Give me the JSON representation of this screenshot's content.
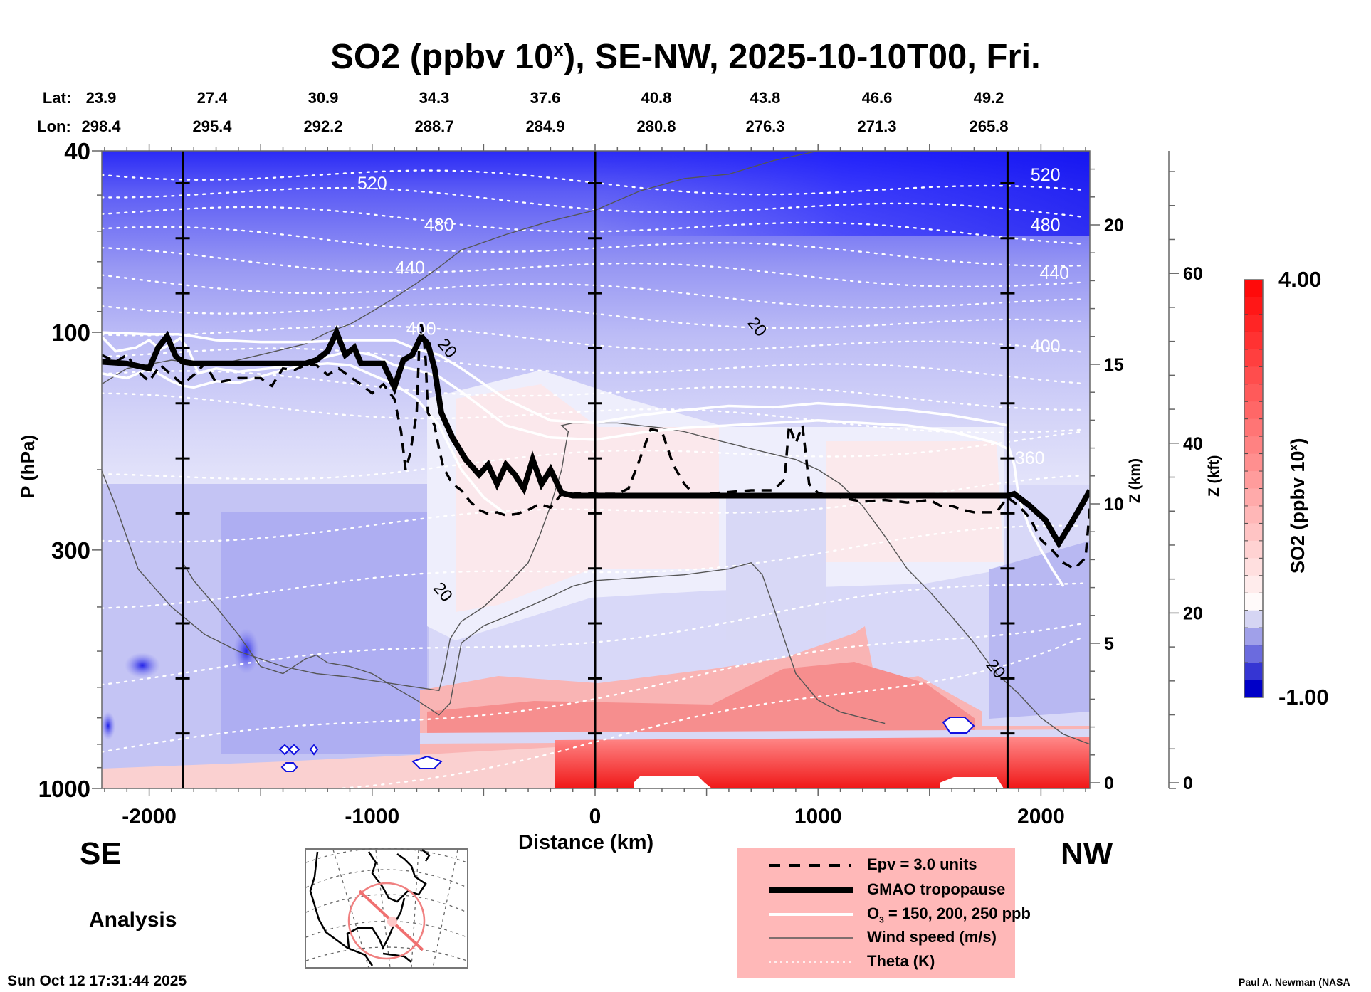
{
  "title": {
    "main": "SO2 (ppbv 10",
    "sup": "x",
    "rest": "), SE-NW, 2025-10-10T00, Fri."
  },
  "chart_data": {
    "type": "heatmap",
    "title": "SO2 (ppbv 10^x), SE-NW, 2025-10-10T00, Fri.",
    "xlabel": "Distance (km)",
    "ylabel": "P (hPa)",
    "y2label": "Z (km)",
    "y3label": "Z (kft)",
    "colorbar_label": "SO2 (ppbv 10^x)",
    "xlim": [
      -2215,
      2220
    ],
    "ylim": [
      1000,
      40
    ],
    "x_ticks": [
      -2000,
      -1000,
      0,
      1000,
      2000
    ],
    "y_ticks": [
      40,
      100,
      300,
      1000
    ],
    "zkm_ticks": [
      0,
      5,
      10,
      15,
      20
    ],
    "zkft_ticks": [
      0,
      20,
      40,
      60
    ],
    "colorbar_range": [
      -1.0,
      4.0
    ],
    "colorbar_tick_labels": [
      "4.00",
      "-1.00"
    ],
    "lat_labels": [
      "23.9",
      "27.4",
      "30.9",
      "34.3",
      "37.6",
      "40.8",
      "43.8",
      "46.6",
      "49.2"
    ],
    "lon_labels": [
      "298.4",
      "295.4",
      "292.2",
      "288.7",
      "284.9",
      "280.8",
      "276.3",
      "271.3",
      "265.8"
    ],
    "lat_prefix": "Lat:",
    "lon_prefix": "Lon:",
    "vertical_markers_km": [
      -1850,
      0,
      1850
    ],
    "theta_labels": [
      {
        "text": "520",
        "x": -1000,
        "p": 47
      },
      {
        "text": "480",
        "x": -700,
        "p": 58
      },
      {
        "text": "440",
        "x": -830,
        "p": 72
      },
      {
        "text": "400",
        "x": -780,
        "p": 98
      },
      {
        "text": "520",
        "x": 2020,
        "p": 45
      },
      {
        "text": "480",
        "x": 2020,
        "p": 58
      },
      {
        "text": "440",
        "x": 2060,
        "p": 74
      },
      {
        "text": "400",
        "x": 2020,
        "p": 107
      },
      {
        "text": "360",
        "x": 1950,
        "p": 188
      }
    ],
    "wind_labels": [
      {
        "text": "20",
        "x": 730,
        "p": 97
      },
      {
        "text": "20",
        "x": -660,
        "p": 108
      },
      {
        "text": "20",
        "x": -680,
        "p": 370
      },
      {
        "text": "20",
        "x": 1800,
        "p": 545
      }
    ],
    "tropopause": {
      "x": [
        -2215,
        -2100,
        -2000,
        -1960,
        -1920,
        -1880,
        -1850,
        -1800,
        -1700,
        -1500,
        -1300,
        -1250,
        -1200,
        -1160,
        -1120,
        -1080,
        -1050,
        -950,
        -900,
        -860,
        -820,
        -780,
        -750,
        -720,
        -690,
        -640,
        -580,
        -520,
        -480,
        -440,
        -400,
        -360,
        -320,
        -280,
        -240,
        -200,
        -150,
        -100,
        0,
        500,
        1000,
        1500,
        1800,
        1850,
        1880,
        1950,
        2020,
        2080,
        2140,
        2220
      ],
      "p": [
        116,
        117,
        120,
        108,
        102,
        113,
        116,
        117,
        117,
        117,
        117,
        115,
        110,
        100,
        112,
        108,
        117,
        117,
        132,
        115,
        112,
        102,
        106,
        120,
        150,
        170,
        190,
        205,
        195,
        215,
        195,
        205,
        220,
        190,
        215,
        200,
        225,
        228,
        228,
        228,
        228,
        228,
        228,
        228,
        226,
        240,
        258,
        290,
        260,
        222
      ]
    },
    "epv_3": {
      "x": [
        -2215,
        -2150,
        -2100,
        -2050,
        -2000,
        -1950,
        -1900,
        -1850,
        -1800,
        -1750,
        -1700,
        -1600,
        -1500,
        -1450,
        -1400,
        -1350,
        -1300,
        -1250,
        -1200,
        -1150,
        -1100,
        -1050,
        -1000,
        -950,
        -900,
        -870,
        -850,
        -830,
        -800,
        -790,
        -780,
        -770,
        -760,
        -750,
        -720,
        -700,
        -680,
        -640,
        -600,
        -560,
        -520,
        -480,
        -440,
        -400,
        -350,
        -300,
        -250,
        -200,
        -150,
        -100,
        -50,
        0,
        100,
        150,
        200,
        250,
        300,
        350,
        400,
        450,
        500,
        600,
        700,
        800,
        850,
        870,
        900,
        930,
        960,
        1000,
        1100,
        1200,
        1300,
        1400,
        1500,
        1550,
        1600,
        1650,
        1700,
        1800,
        1850,
        1900,
        1950,
        2000,
        2050,
        2100,
        2150,
        2200,
        2220
      ],
      "p": [
        112,
        116,
        112,
        122,
        128,
        118,
        124,
        130,
        124,
        117,
        129,
        126,
        126,
        131,
        120,
        121,
        118,
        118,
        124,
        120,
        125,
        130,
        136,
        130,
        140,
        165,
        200,
        185,
        150,
        110,
        96,
        100,
        115,
        150,
        160,
        180,
        198,
        215,
        222,
        235,
        245,
        250,
        248,
        252,
        250,
        245,
        238,
        242,
        226,
        226,
        225,
        226,
        226,
        220,
        190,
        163,
        165,
        195,
        215,
        228,
        226,
        224,
        222,
        222,
        210,
        160,
        175,
        160,
        215,
        225,
        230,
        235,
        233,
        236,
        233,
        240,
        240,
        245,
        248,
        248,
        230,
        240,
        255,
        285,
        300,
        320,
        330,
        312,
        240
      ]
    },
    "ozone_contours": [
      {
        "x": [
          -2215,
          -2000,
          -1870,
          -1800,
          -1700,
          -1500,
          -1300,
          -1100,
          -900,
          -800,
          -700,
          -600,
          -400,
          -200,
          0,
          200,
          400,
          600,
          800,
          1000,
          1200,
          1400,
          1600,
          1800,
          1850
        ],
        "p": [
          100,
          101,
          101,
          102,
          104,
          105,
          105,
          104,
          104,
          109,
          112,
          120,
          140,
          156,
          158,
          152,
          148,
          145,
          146,
          143,
          145,
          148,
          152,
          158,
          160
        ]
      },
      {
        "x": [
          -2215,
          -2150,
          -2060,
          -2000,
          -1950,
          -1900,
          -1860,
          -1820,
          -1780,
          -1700,
          -1600,
          -1400,
          -1200,
          -1100,
          -1000,
          -900,
          -800,
          -700,
          -600,
          -400,
          -200,
          0,
          200,
          400,
          600,
          800,
          1000,
          1200,
          1400,
          1600,
          1800,
          1850
        ],
        "p": [
          102,
          110,
          108,
          104,
          109,
          106,
          103,
          110,
          123,
          120,
          122,
          119,
          113,
          110,
          112,
          118,
          121,
          125,
          135,
          160,
          170,
          172,
          166,
          162,
          160,
          158,
          156,
          158,
          160,
          165,
          175,
          180
        ]
      },
      {
        "x": [
          -2215,
          -2100,
          -2000,
          -1900,
          -1850,
          -1800,
          -1700,
          -1600,
          -1500,
          -1400,
          -1300,
          -1200,
          -1100,
          -1000,
          -900,
          -800,
          -700,
          -600,
          -500,
          -400
        ],
        "p": [
          123,
          126,
          120,
          128,
          131,
          132,
          128,
          129,
          125,
          121,
          118,
          117,
          118,
          124,
          130,
          140,
          160,
          200,
          230,
          250
        ]
      },
      {
        "x": [
          1850,
          1880,
          1900,
          1950,
          2000,
          2050,
          2100
        ],
        "p": [
          175,
          195,
          230,
          270,
          300,
          330,
          360
        ]
      }
    ],
    "wind_contours": [
      {
        "x": [
          -2215,
          -2100,
          -1900,
          -1700,
          -1500,
          -1300,
          -1200,
          -1100,
          -1000,
          -900,
          -800,
          -700,
          -600,
          -400,
          -200,
          0,
          200,
          400,
          600,
          800,
          1000,
          1200,
          1400,
          1600,
          1800,
          2000,
          2100,
          2220
        ],
        "p": [
          130,
          120,
          115,
          118,
          112,
          106,
          100,
          96,
          90,
          84,
          78,
          72,
          66,
          61,
          57,
          54,
          49,
          46,
          45,
          42,
          40,
          40,
          40,
          40,
          40,
          40,
          40,
          40
        ]
      },
      {
        "x": [
          -2215,
          -2150,
          -2050,
          -1900,
          -1750,
          -1600,
          -1400,
          -1250,
          -1100,
          -1000,
          -900,
          -800,
          -700,
          -680,
          -650,
          -600,
          -500,
          -400,
          -300,
          -250,
          -200,
          -150,
          -130,
          -120,
          -150,
          -100,
          0,
          100,
          200,
          300,
          400,
          500,
          600,
          700,
          800,
          900,
          1000,
          1100,
          1200,
          1300,
          1400,
          1500,
          1600,
          1700,
          1800,
          1900,
          2000,
          2100,
          2220
        ],
        "p": [
          200,
          240,
          330,
          400,
          460,
          500,
          540,
          560,
          570,
          580,
          590,
          600,
          610,
          560,
          470,
          430,
          400,
          360,
          320,
          280,
          240,
          200,
          175,
          165,
          160,
          158,
          158,
          158,
          160,
          162,
          165,
          170,
          175,
          180,
          185,
          190,
          200,
          215,
          240,
          280,
          330,
          370,
          420,
          480,
          560,
          620,
          700,
          760,
          800
        ]
      },
      {
        "x": [
          -1850,
          -1800,
          -1700,
          -1600,
          -1500,
          -1400,
          -1300,
          -1250,
          -1200,
          -1100,
          -1000,
          -900,
          -800,
          -700,
          -650,
          -600,
          -500,
          -400,
          -300,
          -200,
          -100,
          0,
          200,
          400,
          600,
          700,
          750,
          800,
          900,
          1000,
          1100,
          1200,
          1300
        ],
        "p": [
          320,
          350,
          400,
          460,
          540,
          560,
          520,
          510,
          530,
          540,
          560,
          600,
          640,
          690,
          650,
          480,
          440,
          420,
          400,
          380,
          360,
          350,
          345,
          340,
          330,
          320,
          340,
          400,
          560,
          640,
          680,
          700,
          720
        ]
      }
    ],
    "theta_levels_K": [
      520,
      480,
      440,
      400,
      360
    ]
  },
  "axes": {
    "p_ticks": [
      "40",
      "100",
      "300",
      "1000"
    ],
    "x_ticks": [
      "-2000",
      "-1000",
      "0",
      "1000",
      "2000"
    ],
    "zkm_ticks": [
      "0",
      "5",
      "10",
      "15",
      "20"
    ],
    "zkft_ticks": [
      "0",
      "20",
      "40",
      "60"
    ],
    "p_label": "P (hPa)",
    "x_label": "Distance (km)",
    "zkm_label": "Z (km)",
    "zkft_label": "Z (kft)",
    "colorbar_label_main": "SO2 (ppbv 10",
    "colorbar_label_sup": "x",
    "colorbar_label_end": ")",
    "colorbar_max": "4.00",
    "colorbar_min": "-1.00"
  },
  "labels": {
    "left_dir": "SE",
    "right_dir": "NW",
    "analysis": "Analysis",
    "timestamp": "Sun Oct 12 17:31:44 2025",
    "credit": "Paul A. Newman (NASA"
  },
  "legend": {
    "items": [
      {
        "label": "Epv = 3.0 units",
        "style": "dashed"
      },
      {
        "label": "GMAO tropopause",
        "style": "thick"
      },
      {
        "label_main": "O",
        "label_sub": "3",
        "label_rest": " = 150, 200, 250 ppb",
        "style": "white"
      },
      {
        "label": "Wind speed (m/s)",
        "style": "thin"
      },
      {
        "label": "Theta (K)",
        "style": "dotted"
      }
    ]
  },
  "colors": {
    "legend_bg": "#ffb8b8",
    "map_track": "#f08080",
    "cbar_red": "#ff0000",
    "cbar_blue": "#0000cc"
  }
}
